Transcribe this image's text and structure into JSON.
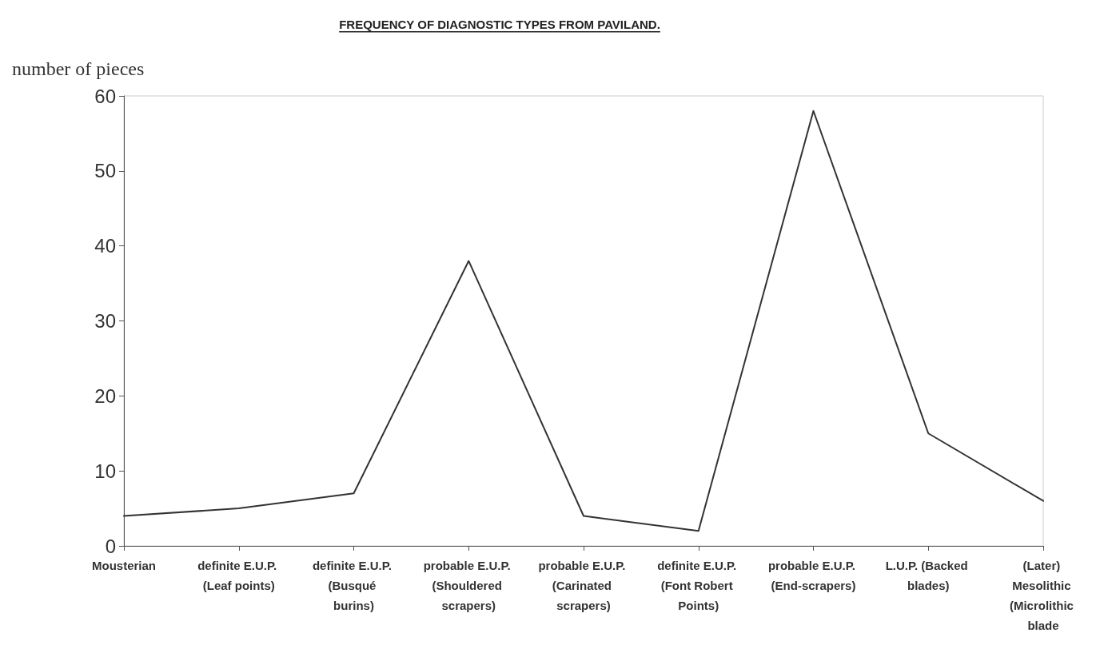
{
  "chart_data": {
    "type": "line",
    "title": "FREQUENCY OF DIAGNOSTIC TYPES FROM PAVILAND.",
    "ylabel": "number of pieces",
    "categories": [
      "Mousterian",
      "definite E.U.P. (Leaf points)",
      "definite E.U.P. (Busqué burins)",
      "probable E.U.P. (Shouldered scrapers)",
      "probable E.U.P. (Carinated scrapers)",
      "definite E.U.P. (Font Robert Points)",
      "probable E.U.P. (End-scrapers)",
      "L.U.P. (Backed blades)",
      "(Later) Mesolithic (Microlithic blade"
    ],
    "values": [
      4,
      5,
      7,
      38,
      4,
      2,
      58,
      15,
      6
    ],
    "color": "#333333",
    "ylim": [
      0,
      60
    ],
    "yticks": [
      0,
      10,
      20,
      30,
      40,
      50,
      60
    ],
    "grid": false,
    "marker": "none",
    "line_style": "solid"
  }
}
